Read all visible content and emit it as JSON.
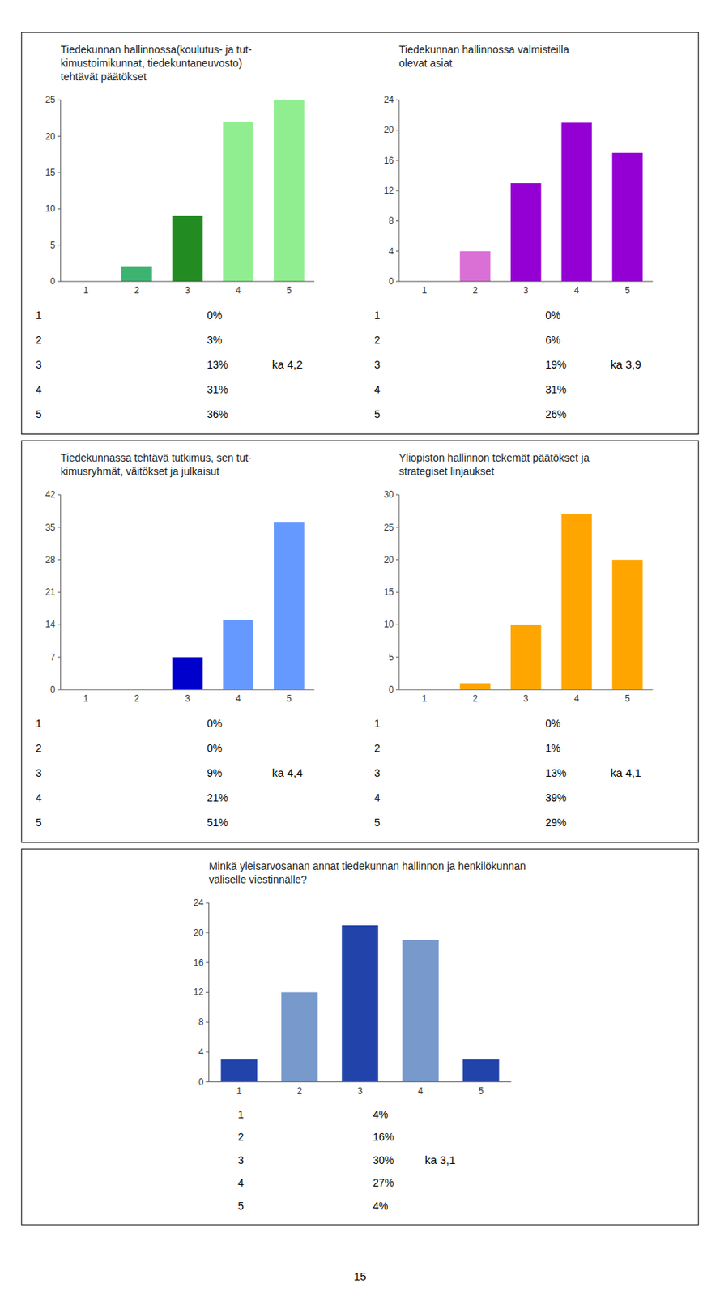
{
  "chart_data": [
    {
      "type": "bar",
      "title": "Tiedekunnan hallinnossa(koulutus- ja tut-\nkimustoimikunnat, tiedekuntaneuvosto)\ntehtävät päätökset",
      "categories": [
        "1",
        "2",
        "3",
        "4",
        "5"
      ],
      "values": [
        0,
        2,
        9,
        22,
        25
      ],
      "colors": [
        "#3CB371",
        "#3CB371",
        "#228B22",
        "#90EE90",
        "#90EE90"
      ],
      "ylim": [
        0,
        25
      ],
      "yticks": [
        0,
        5,
        10,
        15,
        20,
        25
      ],
      "grid": false,
      "annotations": [
        "0%",
        "3%",
        "13%",
        "31%",
        "36%",
        "ka 4,2"
      ]
    },
    {
      "type": "bar",
      "title": "Tiedekunnan hallinnossa valmisteilla\nolevat asiat",
      "categories": [
        "1",
        "2",
        "3",
        "4",
        "5"
      ],
      "values": [
        0,
        4,
        13,
        21,
        17
      ],
      "colors": [
        "#DA70D6",
        "#DA70D6",
        "#9400D3",
        "#9400D3",
        "#9400D3"
      ],
      "ylim": [
        0,
        24
      ],
      "yticks": [
        0,
        4,
        8,
        12,
        16,
        20,
        24
      ],
      "grid": false,
      "annotations": [
        "0%",
        "6%",
        "19%",
        "31%",
        "26%",
        "ka 3,9"
      ]
    },
    {
      "type": "bar",
      "title": "Tiedekunnassa tehtävä tutkimus, sen tut-\nkimusryhmät, väitökset ja julkaisut",
      "categories": [
        "1",
        "2",
        "3",
        "4",
        "5"
      ],
      "values": [
        0,
        0,
        7,
        15,
        36
      ],
      "colors": [
        "#0000CD",
        "#0000CD",
        "#0000CD",
        "#6699FF",
        "#6699FF"
      ],
      "ylim": [
        0,
        42
      ],
      "yticks": [
        0,
        7,
        14,
        21,
        28,
        35,
        42
      ],
      "grid": false,
      "annotations": [
        "0%",
        "0%",
        "9%",
        "21%",
        "51%",
        "ka 4,4"
      ]
    },
    {
      "type": "bar",
      "title": "Yliopiston hallinnon tekemät päätökset ja\nstrategiset linjaukset",
      "categories": [
        "1",
        "2",
        "3",
        "4",
        "5"
      ],
      "values": [
        0,
        1,
        10,
        27,
        20
      ],
      "colors": [
        "#FFA500",
        "#FFA500",
        "#FFA500",
        "#FFA500",
        "#FFA500"
      ],
      "ylim": [
        0,
        30
      ],
      "yticks": [
        0,
        5,
        10,
        15,
        20,
        25,
        30
      ],
      "grid": false,
      "annotations": [
        "0%",
        "1%",
        "13%",
        "39%",
        "29%",
        "ka 4,1"
      ]
    },
    {
      "type": "bar",
      "title": "Minkä yleisarvosanan annat tiedekunnan hallinnon ja henkilökunnan\nväliselle viestinnälle?",
      "categories": [
        "1",
        "2",
        "3",
        "4",
        "5"
      ],
      "values": [
        3,
        12,
        21,
        19,
        3
      ],
      "colors": [
        "#2244AA",
        "#7799CC",
        "#2244AA",
        "#7799CC",
        "#2244AA"
      ],
      "ylim": [
        0,
        24
      ],
      "yticks": [
        0,
        4,
        8,
        12,
        16,
        20,
        24
      ],
      "grid": false,
      "annotations": [
        "4%",
        "16%",
        "30%",
        "27%",
        "4%",
        "ka 3,1"
      ]
    }
  ],
  "page_number": "15"
}
